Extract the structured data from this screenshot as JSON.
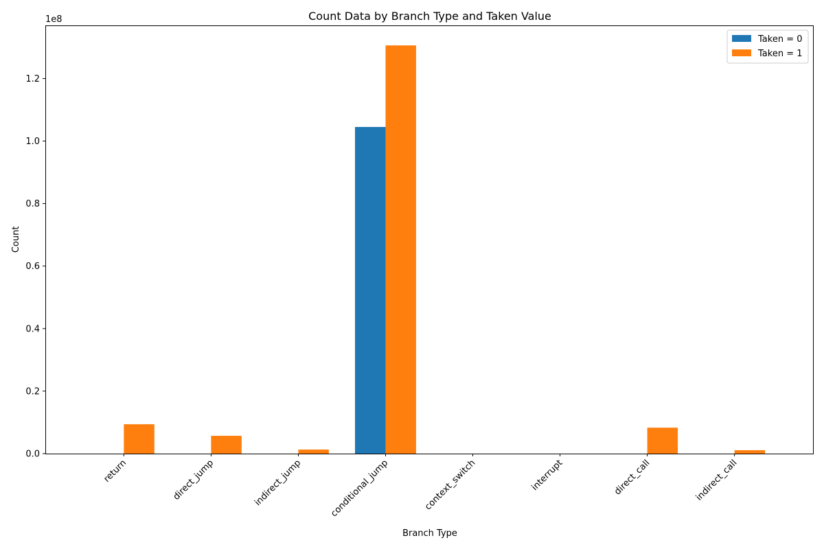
{
  "chart_data": {
    "type": "bar",
    "title": "Count Data by Branch Type and Taken Value",
    "xlabel": "Branch Type",
    "ylabel": "Count",
    "y_multiplier_label": "1e8",
    "categories": [
      "return",
      "direct_jump",
      "indirect_jump",
      "conditional_jump",
      "context_switch",
      "interrupt",
      "direct_call",
      "indirect_call"
    ],
    "series": [
      {
        "name": "Taken = 0",
        "color": "#1f77b4",
        "values": [
          0,
          0,
          0,
          104500000,
          0,
          0,
          0,
          0
        ]
      },
      {
        "name": "Taken = 1",
        "color": "#ff7f0e",
        "values": [
          9400000,
          5700000,
          1300000,
          130600000,
          0,
          0,
          8300000,
          1100000
        ]
      }
    ],
    "ylim": [
      0,
      137000000
    ],
    "yticks": [
      0,
      20000000,
      40000000,
      60000000,
      80000000,
      100000000,
      120000000
    ],
    "ytick_labels": [
      "0.0",
      "0.2",
      "0.4",
      "0.6",
      "0.8",
      "1.0",
      "1.2"
    ],
    "grid": false,
    "legend_position": "top-right"
  }
}
